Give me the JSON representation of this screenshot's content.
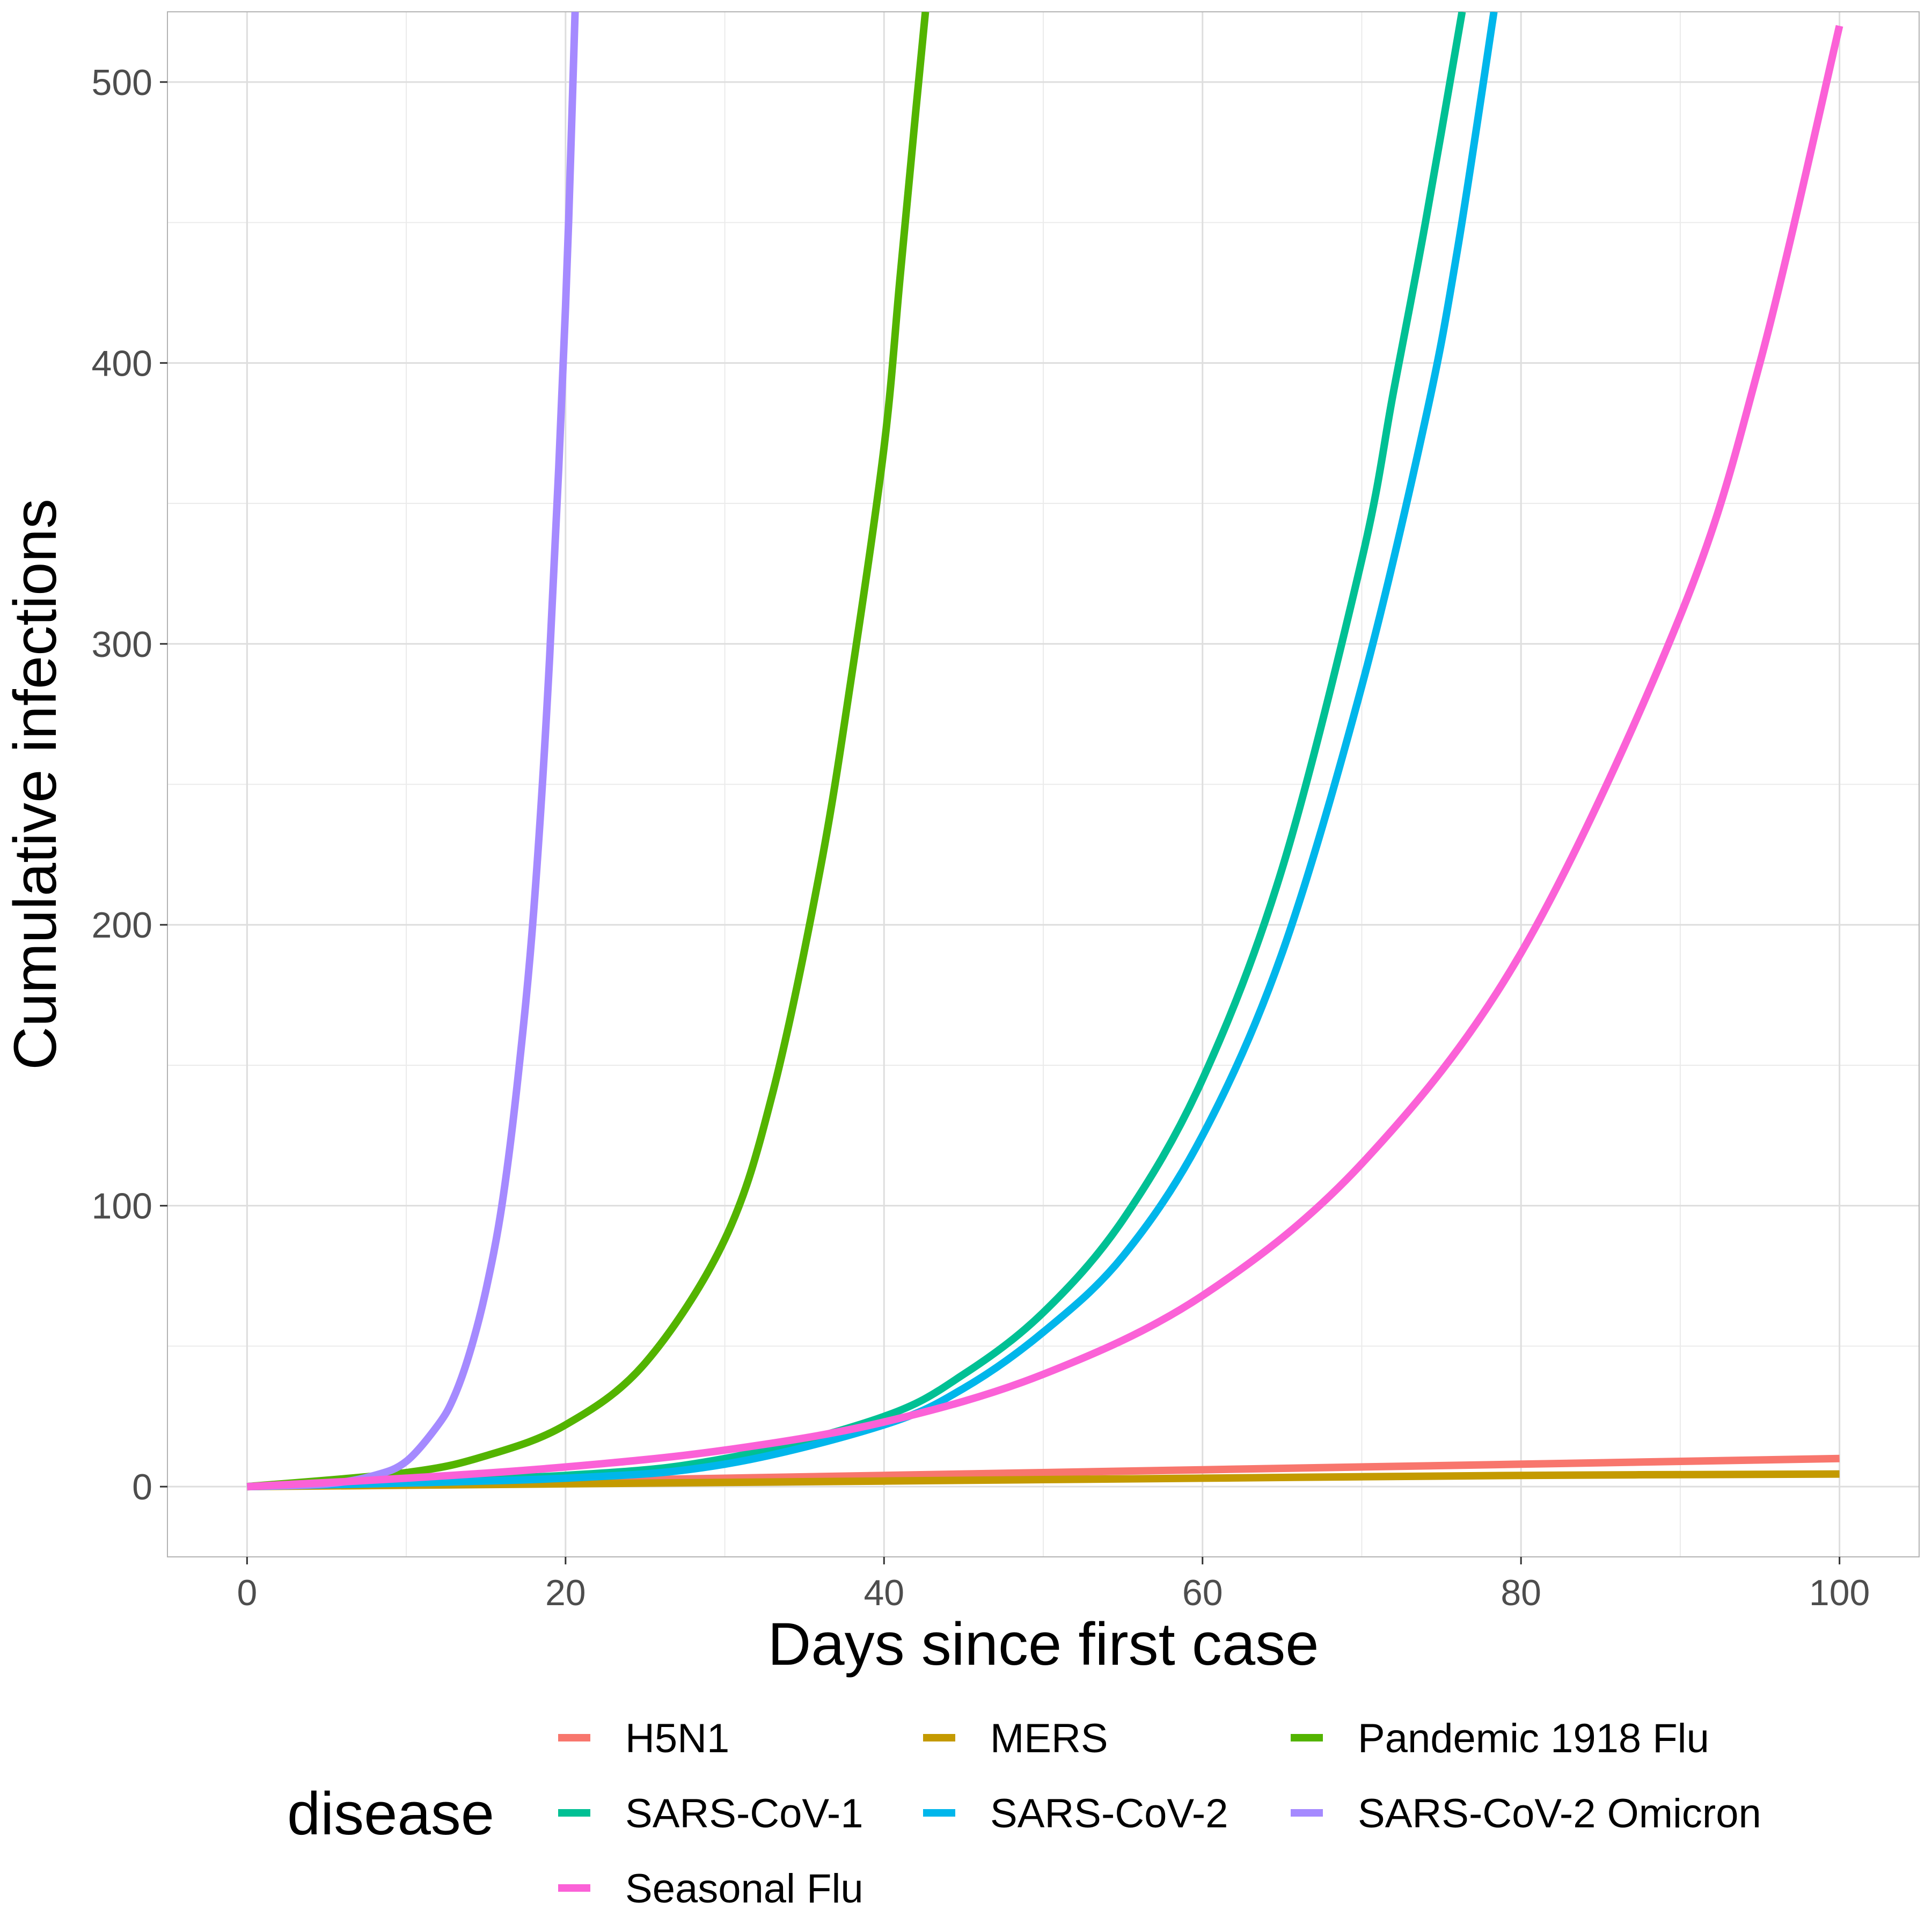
{
  "chart_data": {
    "type": "line",
    "title": "",
    "xlabel": "Days since first case",
    "ylabel": "Cumulative infections",
    "xlim": [
      -5,
      105
    ],
    "ylim": [
      -25,
      525
    ],
    "x_ticks": [
      0,
      20,
      40,
      60,
      80,
      100
    ],
    "y_ticks": [
      0,
      100,
      200,
      300,
      400,
      500
    ],
    "grid": true,
    "legend": {
      "title": "disease",
      "position": "bottom",
      "columns": 3,
      "entries": [
        "H5N1",
        "MERS",
        "Pandemic 1918 Flu",
        "SARS-CoV-1",
        "SARS-CoV-2",
        "SARS-CoV-2 Omicron",
        "Seasonal Flu"
      ]
    },
    "series": [
      {
        "name": "H5N1",
        "color": "#F8766D",
        "x": [
          0,
          20,
          40,
          60,
          80,
          100
        ],
        "y": [
          0,
          2,
          4,
          6,
          8,
          10
        ]
      },
      {
        "name": "MERS",
        "color": "#C49A00",
        "x": [
          0,
          20,
          40,
          60,
          80,
          100
        ],
        "y": [
          0,
          1,
          2,
          3,
          4,
          4.5
        ]
      },
      {
        "name": "Pandemic 1918 Flu",
        "color": "#53B400",
        "x": [
          0,
          10,
          15,
          20,
          25,
          30,
          33,
          36,
          38,
          40,
          41,
          42,
          42.6
        ],
        "y": [
          0,
          5,
          11,
          22,
          44,
          88,
          140,
          220,
          290,
          370,
          430,
          490,
          525
        ]
      },
      {
        "name": "SARS-CoV-1",
        "color": "#00C094",
        "x": [
          0,
          20,
          30,
          40,
          45,
          50,
          55,
          60,
          65,
          70,
          72,
          74,
          76.3
        ],
        "y": [
          0,
          4,
          10,
          25,
          40,
          62,
          95,
          145,
          220,
          330,
          390,
          450,
          525
        ]
      },
      {
        "name": "SARS-CoV-2",
        "color": "#00B6EB",
        "x": [
          0,
          20,
          30,
          40,
          45,
          50,
          55,
          60,
          65,
          70,
          74,
          76,
          78.3
        ],
        "y": [
          0,
          3,
          8,
          22,
          35,
          55,
          82,
          125,
          190,
          285,
          380,
          440,
          525
        ]
      },
      {
        "name": "SARS-CoV-2 Omicron",
        "color": "#A58AFF",
        "x": [
          0,
          5,
          8,
          10,
          12,
          13,
          14,
          15,
          16,
          17,
          18,
          19,
          20,
          20.6
        ],
        "y": [
          0,
          1,
          4,
          9,
          22,
          32,
          48,
          70,
          100,
          145,
          205,
          295,
          420,
          525
        ]
      },
      {
        "name": "Seasonal Flu",
        "color": "#FB61D7",
        "x": [
          0,
          10,
          20,
          30,
          40,
          50,
          60,
          70,
          80,
          90,
          95,
          100
        ],
        "y": [
          0,
          3,
          7,
          13,
          23,
          40,
          68,
          115,
          190,
          310,
          400,
          520
        ]
      }
    ]
  }
}
